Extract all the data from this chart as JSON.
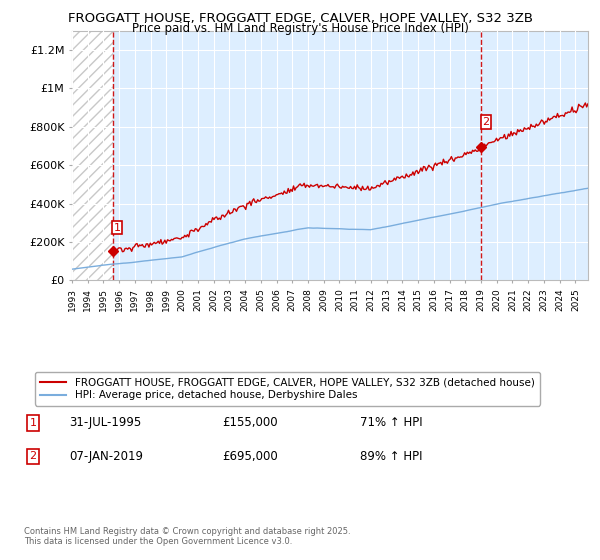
{
  "title_line1": "FROGGATT HOUSE, FROGGATT EDGE, CALVER, HOPE VALLEY, S32 3ZB",
  "title_line2": "Price paid vs. HM Land Registry's House Price Index (HPI)",
  "ylabel_ticks": [
    "£0",
    "£200K",
    "£400K",
    "£600K",
    "£800K",
    "£1M",
    "£1.2M"
  ],
  "ytick_values": [
    0,
    200000,
    400000,
    600000,
    800000,
    1000000,
    1200000
  ],
  "ylim": [
    0,
    1300000
  ],
  "xlim_start": 1993.0,
  "xlim_end": 2025.8,
  "sale1_x": 1995.58,
  "sale1_y": 155000,
  "sale2_x": 2019.02,
  "sale2_y": 695000,
  "sale_color": "#cc0000",
  "hpi_color": "#7aaddd",
  "vline_color": "#cc0000",
  "background_color": "#ffffff",
  "plot_bg_color": "#ddeeff",
  "grid_color": "#ffffff",
  "hatch_color": "#c8c8c8",
  "legend_label_red": "FROGGATT HOUSE, FROGGATT EDGE, CALVER, HOPE VALLEY, S32 3ZB (detached house)",
  "legend_label_blue": "HPI: Average price, detached house, Derbyshire Dales",
  "annotation1_date": "31-JUL-1995",
  "annotation1_price": "£155,000",
  "annotation1_hpi": "71% ↑ HPI",
  "annotation2_date": "07-JAN-2019",
  "annotation2_price": "£695,000",
  "annotation2_hpi": "89% ↑ HPI",
  "footer": "Contains HM Land Registry data © Crown copyright and database right 2025.\nThis data is licensed under the Open Government Licence v3.0."
}
